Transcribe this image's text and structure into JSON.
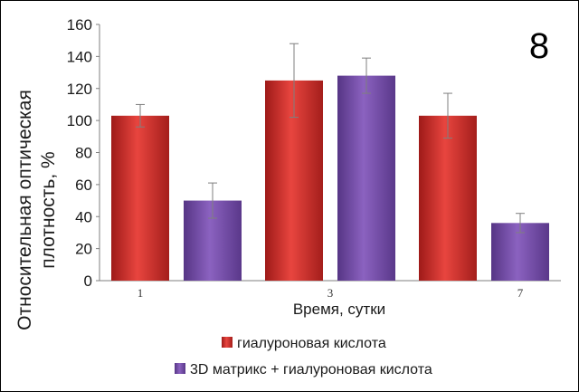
{
  "panel_label": "8",
  "colors": {
    "series_1": "#d7322f",
    "series_2": "#7a4fae",
    "axis": "#7f7f7f",
    "error_bar": "#7f7f7f"
  },
  "chart_data": {
    "type": "bar",
    "title": "",
    "categories": [
      "1",
      "3",
      "7"
    ],
    "series": [
      {
        "name": "гиалуроновая кислота",
        "values": [
          103,
          125,
          103
        ],
        "errors": [
          7,
          23,
          14
        ]
      },
      {
        "name": "3D матрикс + гиалуроновая кислота",
        "values": [
          50,
          128,
          36
        ],
        "errors": [
          11,
          11,
          6
        ]
      }
    ],
    "xlabel": "Время, сутки",
    "ylabel_lines": [
      "Относительная оптическая",
      "плотность, %"
    ],
    "ylim": [
      0,
      160
    ],
    "yticks": [
      "0",
      "20",
      "40",
      "60",
      "80",
      "100",
      "120",
      "140",
      "160"
    ],
    "grid": false,
    "legend_position": "bottom"
  }
}
